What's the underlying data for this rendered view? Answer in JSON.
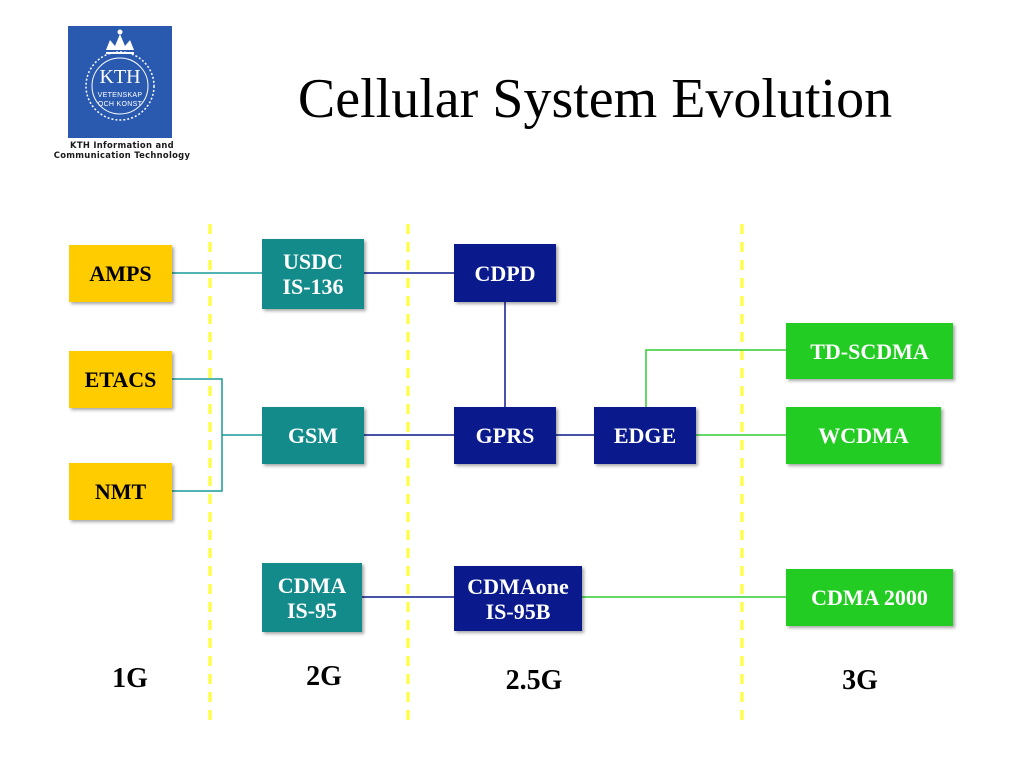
{
  "title": "Cellular System Evolution",
  "logo": {
    "text": "KTH",
    "line1": "VETENSKAP",
    "line2": "OCH KONST",
    "subtitle_line1": "KTH Information and",
    "subtitle_line2": "Communication Technology"
  },
  "nodes": {
    "amps": {
      "line1": "AMPS"
    },
    "etacs": {
      "line1": "ETACS"
    },
    "nmt": {
      "line1": "NMT"
    },
    "usdc": {
      "line1": "USDC",
      "line2": "IS-136"
    },
    "gsm": {
      "line1": "GSM"
    },
    "cdma": {
      "line1": "CDMA",
      "line2": "IS-95"
    },
    "cdpd": {
      "line1": "CDPD"
    },
    "gprs": {
      "line1": "GPRS"
    },
    "cdmaone": {
      "line1": "CDMAone",
      "line2": "IS-95B"
    },
    "edge": {
      "line1": "EDGE"
    },
    "tdscdma": {
      "line1": "TD-SCDMA"
    },
    "wcdma": {
      "line1": "WCDMA"
    },
    "cdma2000": {
      "line1": "CDMA 2000"
    }
  },
  "generations": [
    "1G",
    "2G",
    "2.5G",
    "3G"
  ],
  "colors": {
    "gen1": "#ffcc00",
    "gen2": "#148b8b",
    "gen25": "#0a1a8c",
    "gen3": "#22cc22",
    "separator": "#ffff33",
    "logo": "#2a5ab0"
  }
}
